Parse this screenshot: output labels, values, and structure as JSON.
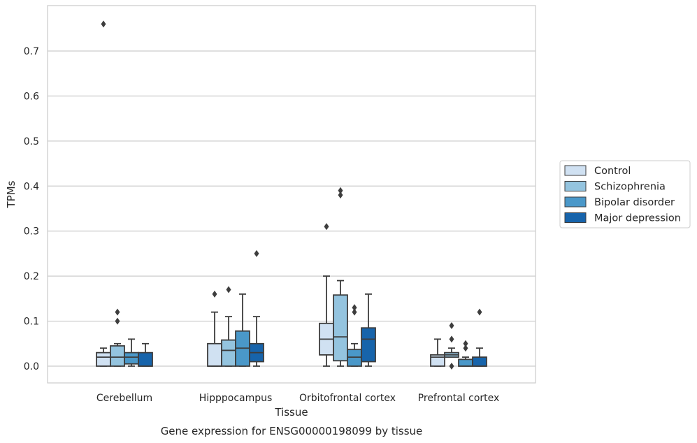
{
  "caption": "Gene expression for ENSG00000198099 by tissue",
  "chart_data": {
    "type": "boxplot",
    "xlabel": "Tissue",
    "ylabel": "TPMs",
    "ylim": [
      -0.037,
      0.8
    ],
    "yticks": [
      "0.0",
      "0.1",
      "0.2",
      "0.3",
      "0.4",
      "0.5",
      "0.6",
      "0.7"
    ],
    "yticks_values": [
      0.0,
      0.1,
      0.2,
      0.3,
      0.4,
      0.5,
      0.6,
      0.7
    ],
    "grid": "horizontal",
    "legend_position": "right",
    "categories": [
      "Cerebellum",
      "Hipppocampus",
      "Orbitofrontal cortex",
      "Prefrontal cortex"
    ],
    "series": [
      {
        "name": "Control",
        "color": "#d0e1f2",
        "boxes": [
          {
            "whisker_low": 0.0,
            "q1": 0.0,
            "median": 0.02,
            "q3": 0.03,
            "whisker_high": 0.04,
            "outliers": [
              0.76
            ]
          },
          {
            "whisker_low": 0.0,
            "q1": 0.0,
            "median": 0.0,
            "q3": 0.05,
            "whisker_high": 0.12,
            "outliers": [
              0.16
            ]
          },
          {
            "whisker_low": 0.0,
            "q1": 0.025,
            "median": 0.06,
            "q3": 0.095,
            "whisker_high": 0.2,
            "outliers": [
              0.31
            ]
          },
          {
            "whisker_low": 0.0,
            "q1": 0.0,
            "median": 0.02,
            "q3": 0.025,
            "whisker_high": 0.06,
            "outliers": []
          }
        ]
      },
      {
        "name": "Schizophrenia",
        "color": "#94c4df",
        "boxes": [
          {
            "whisker_low": 0.0,
            "q1": 0.0,
            "median": 0.02,
            "q3": 0.045,
            "whisker_high": 0.05,
            "outliers": [
              0.1,
              0.12
            ]
          },
          {
            "whisker_low": 0.0,
            "q1": 0.0,
            "median": 0.035,
            "q3": 0.058,
            "whisker_high": 0.11,
            "outliers": [
              0.17
            ]
          },
          {
            "whisker_low": 0.0,
            "q1": 0.012,
            "median": 0.065,
            "q3": 0.158,
            "whisker_high": 0.19,
            "outliers": [
              0.38,
              0.39
            ]
          },
          {
            "whisker_low": 0.02,
            "q1": 0.02,
            "median": 0.025,
            "q3": 0.03,
            "whisker_high": 0.04,
            "outliers": [
              0.0,
              0.06,
              0.09
            ]
          }
        ]
      },
      {
        "name": "Bipolar disorder",
        "color": "#4a98c9",
        "boxes": [
          {
            "whisker_low": 0.0,
            "q1": 0.005,
            "median": 0.02,
            "q3": 0.03,
            "whisker_high": 0.06,
            "outliers": []
          },
          {
            "whisker_low": 0.0,
            "q1": 0.0,
            "median": 0.04,
            "q3": 0.078,
            "whisker_high": 0.16,
            "outliers": []
          },
          {
            "whisker_low": 0.0,
            "q1": 0.0,
            "median": 0.02,
            "q3": 0.037,
            "whisker_high": 0.05,
            "outliers": [
              0.12,
              0.13
            ]
          },
          {
            "whisker_low": 0.0,
            "q1": 0.0,
            "median": 0.0,
            "q3": 0.015,
            "whisker_high": 0.02,
            "outliers": [
              0.04,
              0.05
            ]
          }
        ]
      },
      {
        "name": "Major depression",
        "color": "#1764ab",
        "boxes": [
          {
            "whisker_low": 0.0,
            "q1": 0.0,
            "median": 0.0,
            "q3": 0.03,
            "whisker_high": 0.05,
            "outliers": []
          },
          {
            "whisker_low": 0.0,
            "q1": 0.01,
            "median": 0.03,
            "q3": 0.05,
            "whisker_high": 0.11,
            "outliers": [
              0.25
            ]
          },
          {
            "whisker_low": 0.0,
            "q1": 0.01,
            "median": 0.06,
            "q3": 0.085,
            "whisker_high": 0.16,
            "outliers": []
          },
          {
            "whisker_low": 0.0,
            "q1": 0.0,
            "median": 0.0,
            "q3": 0.02,
            "whisker_high": 0.04,
            "outliers": [
              0.12
            ]
          }
        ]
      }
    ]
  }
}
